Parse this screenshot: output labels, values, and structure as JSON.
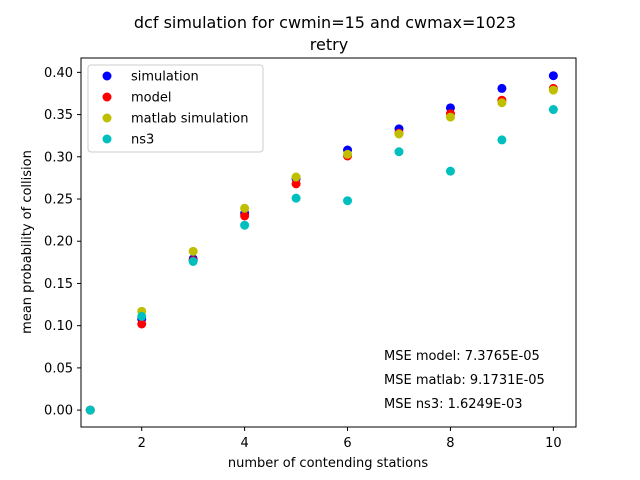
{
  "chart_data": {
    "type": "scatter",
    "title": "dcf simulation for cwmin=15 and cwmax=1023",
    "subtitle": "retry",
    "xlabel": "number of contending stations",
    "ylabel": "mean probability of collision",
    "xlim": [
      0.82,
      10.44
    ],
    "ylim": [
      -0.02,
      0.417
    ],
    "xticks": [
      2,
      4,
      6,
      8,
      10
    ],
    "yticks": [
      0.0,
      0.05,
      0.1,
      0.15,
      0.2,
      0.25,
      0.3,
      0.35,
      0.4
    ],
    "xtick_labels": [
      "2",
      "4",
      "6",
      "8",
      "10"
    ],
    "ytick_labels": [
      "0.00",
      "0.05",
      "0.10",
      "0.15",
      "0.20",
      "0.25",
      "0.30",
      "0.35",
      "0.40"
    ],
    "x": [
      1,
      2,
      3,
      4,
      5,
      6,
      7,
      8,
      9,
      10
    ],
    "series": [
      {
        "name": "simulation",
        "color": "#0000ff",
        "values": [
          0.0,
          0.108,
          0.179,
          0.233,
          0.274,
          0.308,
          0.333,
          0.358,
          0.381,
          0.396
        ]
      },
      {
        "name": "model",
        "color": "#ff0000",
        "values": [
          0.0,
          0.102,
          0.177,
          0.23,
          0.268,
          0.301,
          0.328,
          0.351,
          0.367,
          0.381
        ]
      },
      {
        "name": "matlab simulation",
        "color": "#bfbf00",
        "values": [
          0.0,
          0.117,
          0.188,
          0.239,
          0.276,
          0.303,
          0.327,
          0.347,
          0.364,
          0.379
        ]
      },
      {
        "name": "ns3",
        "color": "#00bfbf",
        "values": [
          0.0,
          0.111,
          0.176,
          0.219,
          0.251,
          0.248,
          0.306,
          0.283,
          0.32,
          0.356
        ]
      }
    ],
    "annotations": [
      "MSE model: 7.3765E-05",
      "MSE matlab: 9.1731E-05",
      "MSE ns3: 1.6249E-03"
    ],
    "legend_position": "top-left",
    "grid": false
  }
}
